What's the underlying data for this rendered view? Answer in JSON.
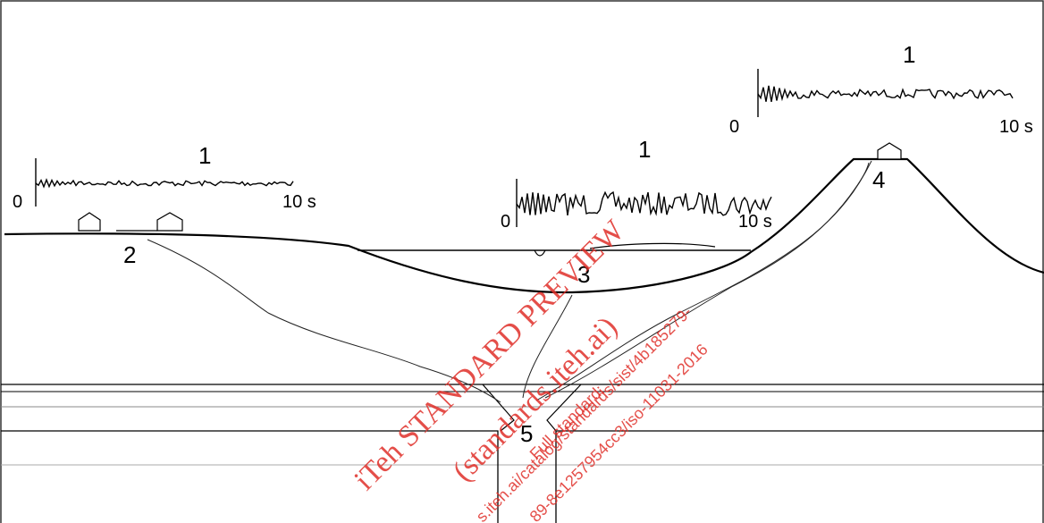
{
  "seismograms": [
    {
      "label": "1",
      "start": "0",
      "end": "10 s"
    },
    {
      "label": "1",
      "start": "0",
      "end": "10 s"
    },
    {
      "label": "1",
      "start": "0",
      "end": "10 s"
    }
  ],
  "sites": [
    {
      "label": "2"
    },
    {
      "label": "3"
    },
    {
      "label": "4"
    },
    {
      "label": "5"
    }
  ],
  "watermark": [
    "iTeh STANDARD PREVIEW",
    "(standards.iteh.ai)",
    "Full standard:",
    "s.iteh.ai/catalog/standards/sist/4b185279-",
    "89-8e1257954cc3/iso-11031-2016"
  ]
}
